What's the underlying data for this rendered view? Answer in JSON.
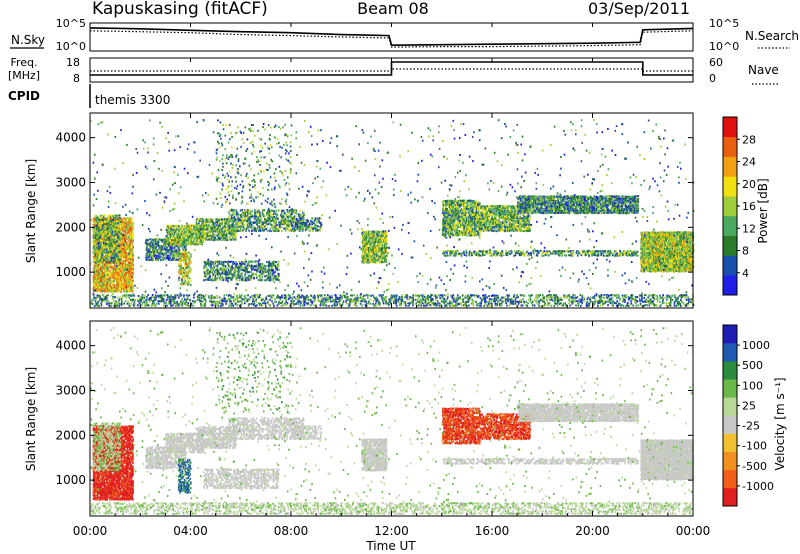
{
  "header": {
    "station": "Kapuskasing (fitACF)",
    "beam": "Beam 08",
    "date": "03/Sep/2011"
  },
  "side_labels": {
    "nsky": "N.Sky",
    "nsearch": "N.Search",
    "freq": "Freq.",
    "mhz": "[MHz]",
    "nave": "Nave",
    "cpid": "CPID",
    "cpid_value": "themis 3300"
  },
  "chart_data": [
    {
      "type": "line",
      "name": "noise",
      "y_ticks_left": [
        "10^5",
        "10^0"
      ],
      "y_ticks_right": [
        "10^5",
        "10^0"
      ],
      "series": [
        {
          "name": "N.Sky",
          "style": "solid"
        },
        {
          "name": "N.Search",
          "style": "dotted"
        }
      ],
      "x": [
        0,
        2,
        4,
        6,
        8,
        10,
        11.9,
        12,
        14,
        16,
        18,
        20,
        21.9,
        22,
        24
      ],
      "values_sky": [
        4.4,
        4.2,
        3.9,
        3.6,
        3.4,
        3.0,
        2.8,
        0.8,
        0.9,
        1.0,
        1.1,
        1.2,
        1.4,
        4.0,
        4.3
      ],
      "values_search": [
        3.8,
        3.6,
        3.4,
        3.0,
        2.8,
        2.5,
        2.3,
        0.4,
        0.5,
        0.5,
        0.6,
        0.7,
        0.9,
        3.5,
        3.8
      ]
    },
    {
      "type": "line",
      "name": "frequency",
      "y_ticks_left": [
        "18",
        "8"
      ],
      "y_ticks_right": [
        "60",
        "0"
      ],
      "series": [
        {
          "name": "Freq",
          "style": "solid",
          "x": [
            0,
            12,
            12,
            22,
            22,
            24
          ],
          "values": [
            10.5,
            10.5,
            17,
            17,
            10.5,
            10.5
          ]
        },
        {
          "name": "Nave",
          "style": "dotted",
          "x": [
            0,
            12,
            12,
            22,
            22,
            24
          ],
          "values": [
            12.5,
            12.5,
            13.5,
            13.5,
            12.5,
            12.5
          ]
        }
      ]
    },
    {
      "type": "heatmap",
      "name": "power",
      "ylabel": "Slant Range [km]",
      "yticks": [
        1000,
        2000,
        3000,
        4000
      ],
      "ylim": [
        200,
        4550
      ],
      "colorbar": {
        "label": "Power [dB]",
        "ticks": [
          "4",
          "8",
          "12",
          "16",
          "20",
          "24",
          "28"
        ],
        "colors": [
          "#1e1ee6",
          "#1a4fae",
          "#2a7a2a",
          "#4aa860",
          "#9fce3a",
          "#f0e010",
          "#f0a010",
          "#e86010",
          "#e01010"
        ]
      }
    },
    {
      "type": "heatmap",
      "name": "velocity",
      "ylabel": "Slant Range [km]",
      "xlabel": "Time UT",
      "xticks": [
        "00:00",
        "04:00",
        "08:00",
        "12:00",
        "16:00",
        "20:00",
        "00:00"
      ],
      "xlim_hours": [
        0,
        24
      ],
      "yticks": [
        1000,
        2000,
        3000,
        4000
      ],
      "ylim": [
        200,
        4550
      ],
      "colorbar": {
        "label": "Velocity [m s⁻¹]",
        "ticks": [
          "1000",
          "500",
          "100",
          "25",
          "-25",
          "-100",
          "-500",
          "-1000"
        ],
        "colors": [
          "#1e1eb4",
          "#1e5ab4",
          "#2a8c3c",
          "#6ab848",
          "#b8d898",
          "#c8c8c8",
          "#f0c030",
          "#f09020",
          "#f06018",
          "#e02020"
        ]
      }
    }
  ],
  "echo_regions": [
    {
      "t0": 0.1,
      "t1": 1.7,
      "r0": 550,
      "r1": 2200,
      "density": 0.75,
      "power": 0.65,
      "vel": -0.9
    },
    {
      "t0": 0.1,
      "t1": 1.2,
      "r0": 1200,
      "r1": 2300,
      "density": 0.35,
      "power": 0.4,
      "vel": 0.15
    },
    {
      "t0": 2.2,
      "t1": 3.8,
      "r0": 1250,
      "r1": 1750,
      "density": 0.55,
      "power": 0.3,
      "vel": 0.05
    },
    {
      "t0": 3.0,
      "t1": 4.5,
      "r0": 1600,
      "r1": 2050,
      "density": 0.6,
      "power": 0.45,
      "vel": 0.05
    },
    {
      "t0": 3.5,
      "t1": 4.0,
      "r0": 700,
      "r1": 1450,
      "density": 0.4,
      "power": 0.55,
      "vel": 0.6
    },
    {
      "t0": 4.2,
      "t1": 5.8,
      "r0": 1700,
      "r1": 2200,
      "density": 0.5,
      "power": 0.4,
      "vel": 0.05
    },
    {
      "t0": 4.5,
      "t1": 7.5,
      "r0": 800,
      "r1": 1250,
      "density": 0.4,
      "power": 0.3,
      "vel": 0.05
    },
    {
      "t0": 5.5,
      "t1": 8.5,
      "r0": 1900,
      "r1": 2400,
      "density": 0.4,
      "power": 0.35,
      "vel": 0.05
    },
    {
      "t0": 5.0,
      "t1": 8.0,
      "r0": 2500,
      "r1": 4300,
      "density": 0.05,
      "power": 0.35,
      "vel": 0.3
    },
    {
      "t0": 8.0,
      "t1": 9.2,
      "r0": 1900,
      "r1": 2200,
      "density": 0.35,
      "power": 0.3,
      "vel": 0.05
    },
    {
      "t0": 10.8,
      "t1": 11.8,
      "r0": 1200,
      "r1": 1900,
      "density": 0.7,
      "power": 0.45,
      "vel": 0.05
    },
    {
      "t0": 14.0,
      "t1": 15.5,
      "r0": 1800,
      "r1": 2600,
      "density": 0.65,
      "power": 0.4,
      "vel": -0.8
    },
    {
      "t0": 15.5,
      "t1": 17.5,
      "r0": 1900,
      "r1": 2500,
      "density": 0.55,
      "power": 0.4,
      "vel": -0.8
    },
    {
      "t0": 17.0,
      "t1": 21.8,
      "r0": 2300,
      "r1": 2700,
      "density": 0.7,
      "power": 0.3,
      "vel": 0.05
    },
    {
      "t0": 14.0,
      "t1": 21.8,
      "r0": 1350,
      "r1": 1500,
      "density": 0.4,
      "power": 0.35,
      "vel": 0.05
    },
    {
      "t0": 21.9,
      "t1": 24.0,
      "r0": 1000,
      "r1": 1900,
      "density": 0.9,
      "power": 0.5,
      "vel": 0.05
    },
    {
      "t0": 0.0,
      "t1": 24.0,
      "r0": 230,
      "r1": 520,
      "density": 0.28,
      "power": 0.3,
      "vel": 0.1
    },
    {
      "t0": 0.0,
      "t1": 24.0,
      "r0": 400,
      "r1": 4400,
      "density": 0.012,
      "power": 0.3,
      "vel": 0.2
    }
  ]
}
